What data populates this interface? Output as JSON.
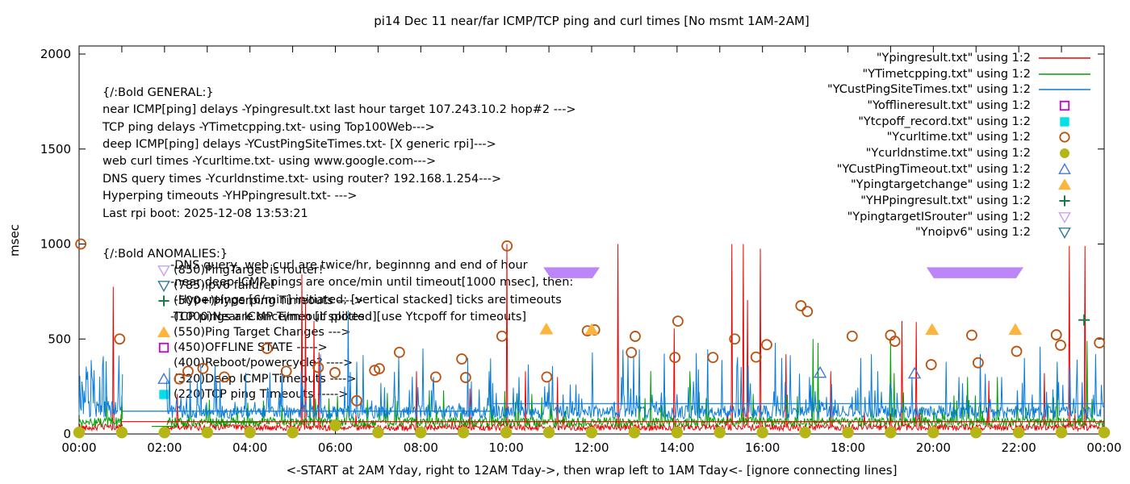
{
  "title": "pi14 Dec 11  near/far ICMP/TCP ping and curl times [No msmt 1AM-2AM]",
  "y_axis": {
    "label": "msec",
    "ticks": [
      0,
      500,
      1000,
      1500,
      2000
    ]
  },
  "x_axis": {
    "label": "<-START at 2AM Yday, right to 12AM Tday->, then wrap left to 1AM Tday<- [ignore connecting lines]",
    "tick_labels": [
      "00:00",
      "02:00",
      "04:00",
      "06:00",
      "08:00",
      "10:00",
      "12:00",
      "14:00",
      "16:00",
      "18:00",
      "20:00",
      "22:00",
      "00:00"
    ]
  },
  "annotations": {
    "general": [
      "{/:Bold GENERAL:}",
      "near ICMP[ping] delays -Ypingresult.txt last hour target 107.243.10.2 hop#2 --->",
      "TCP ping delays -YTimetcpping.txt- using Top100Web--->",
      "deep ICMP[ping] delays -YCustPingSiteTimes.txt- [X generic rpi]--->",
      "web curl times -Ycurltime.txt- using www.google.com--->",
      "DNS query times -Ycurldnstime.txt- using router? 192.168.1.254--->",
      "Hyperping timeouts -YHPpingresult.txt- --->",
      "Last rpi boot: 2025-12-08 13:53:21"
    ],
    "notes": [
      "-DNS query, web curl are twice/hr, beginnng and end of hour",
      "-near,deep ICMP pings are once/min until timeout[1000 msec], then:",
      " -Hyperpings [6/min] initiated; [vertical stacked] ticks are timeouts",
      "-TCP pings are once/min [if plotted][use Ytcpoff for timeouts]"
    ],
    "anomalies_header": "{/:Bold ANOMALIES:}",
    "anomalies": [
      {
        "marker": "triangle-down-open",
        "color": "#c9a0fa",
        "text": "(850)PingTarget is router!"
      },
      {
        "marker": "triangle-down-open",
        "color": "#337a99",
        "text": "(785)ipv6 failure!"
      },
      {
        "marker": "plus",
        "color": "#1a7a46",
        "text": "(500+)Hyperping Timeouts ---->"
      },
      {
        "marker": "none",
        "color": "",
        "text": "(1000)Near ICMP Timeout spikes"
      },
      {
        "marker": "triangle-up-filled",
        "color": "#fdb43c",
        "text": "(550)Ping Target Changes --->"
      },
      {
        "marker": "square-open",
        "color": "#c800d8",
        "text": "(450)OFFLINE STATE ----->"
      },
      {
        "marker": "none",
        "color": "",
        "text": "(400)Reboot/powercycle? ---->"
      },
      {
        "marker": "triangle-up-open",
        "color": "#4878d8",
        "text": "(320)Deep ICMP Timeouts ---->"
      },
      {
        "marker": "square-filled",
        "color": "#00e0e8",
        "text": "(220)TCP ping Timeouts ----->"
      }
    ]
  },
  "legend": [
    {
      "label": "\"Ypingresult.txt\" using 1:2",
      "marker": "line",
      "color": "#ee0000"
    },
    {
      "label": "\"YTimetcpping.txt\" using 1:2",
      "marker": "line",
      "color": "#00a000"
    },
    {
      "label": "\"YCustPingSiteTimes.txt\" using 1:2",
      "marker": "line",
      "color": "#0a7cdc"
    },
    {
      "label": "\"Yofflineresult.txt\" using 1:2",
      "marker": "square-open",
      "color": "#c800d8"
    },
    {
      "label": "\"Ytcpoff_record.txt\" using 1:2",
      "marker": "square-filled",
      "color": "#00e0e8"
    },
    {
      "label": "\"Ycurltime.txt\" using 1:2",
      "marker": "circle-open",
      "color": "#bc5210"
    },
    {
      "label": "\"Ycurldnstime.txt\" using 1:2",
      "marker": "circle-filled",
      "color": "#b5b616"
    },
    {
      "label": "\"YCustPingTimeout.txt\" using 1:2",
      "marker": "triangle-up-open",
      "color": "#4878d8"
    },
    {
      "label": "\"Ypingtargetchange\" using 1:2",
      "marker": "triangle-up-filled",
      "color": "#fdb43c"
    },
    {
      "label": "\"YHPpingresult.txt\" using 1:2",
      "marker": "plus",
      "color": "#1a7a46"
    },
    {
      "label": "\"YpingtargetISrouter\" using 1:2",
      "marker": "triangle-down-open",
      "color": "#c9a0fa"
    },
    {
      "label": "\"Ynoipv6\" using 1:2",
      "marker": "triangle-down-open",
      "color": "#337a99"
    }
  ],
  "chart_data": {
    "type": "line",
    "x_unit": "hours",
    "x_range": [
      0,
      24
    ],
    "y_range": [
      0,
      2045
    ],
    "y_ticks": [
      0,
      500,
      1000,
      1500,
      2000
    ],
    "no_measurement_window": [
      1.03,
      2.05
    ],
    "series": [
      {
        "name": "Ypingresult.txt",
        "color": "#ee0000",
        "baseline": 18,
        "noise": 34,
        "burst_chance": 0.02,
        "burst_base": 60,
        "burst_amp": 60,
        "spikes": [
          [
            0.8,
            775
          ],
          [
            2.3,
            210
          ],
          [
            5.22,
            840
          ],
          [
            5.3,
            700
          ],
          [
            5.5,
            595
          ],
          [
            5.62,
            430
          ],
          [
            7.9,
            330
          ],
          [
            9.15,
            240
          ],
          [
            10.02,
            1000
          ],
          [
            10.45,
            330
          ],
          [
            11.2,
            300
          ],
          [
            12.62,
            1000
          ],
          [
            13.93,
            555
          ],
          [
            15.28,
            1000
          ],
          [
            15.55,
            1000
          ],
          [
            15.65,
            705
          ],
          [
            15.95,
            975
          ],
          [
            16.55,
            420
          ],
          [
            17.6,
            330
          ],
          [
            19.26,
            595
          ],
          [
            19.6,
            590
          ],
          [
            21.3,
            280
          ],
          [
            22.6,
            320
          ],
          [
            23.19,
            990
          ],
          [
            23.55,
            990
          ]
        ]
      },
      {
        "name": "YTimetcpping.txt",
        "color": "#00a000",
        "baseline": 38,
        "noise": 50,
        "burst_chance": 0.05,
        "burst_base": 110,
        "burst_amp": 120,
        "spikes": [
          [
            3.05,
            180
          ],
          [
            6.05,
            200
          ],
          [
            8.2,
            230
          ],
          [
            10.6,
            210
          ],
          [
            13.38,
            331
          ],
          [
            14.3,
            330
          ],
          [
            17.18,
            500
          ],
          [
            17.3,
            480
          ],
          [
            19.0,
            495
          ],
          [
            19.08,
            320
          ],
          [
            20.8,
            300
          ],
          [
            21.5,
            300
          ],
          [
            22.9,
            300
          ],
          [
            23.6,
            490
          ]
        ]
      },
      {
        "name": "YCustPingSiteTimes.txt",
        "color": "#0a7cdc",
        "baseline": 80,
        "noise": 70,
        "burst_chance": 0.1,
        "burst_base": 150,
        "burst_amp": 130,
        "big_chance": 0.018,
        "big_base": 290,
        "big_amp": 160,
        "cluster_hours": [
          0,
          1.03
        ],
        "cluster_base": 85,
        "cluster_amp": 90,
        "cluster_spike_chance": 0.3,
        "cluster_spike_base": 200,
        "cluster_spike_amp": 240,
        "spikes": [
          [
            2.6,
            300
          ],
          [
            3.3,
            280
          ],
          [
            4.75,
            340
          ],
          [
            5.2,
            330
          ],
          [
            6.3,
            650
          ],
          [
            6.5,
            380
          ],
          [
            6.65,
            415
          ],
          [
            8.05,
            450
          ],
          [
            8.3,
            300
          ],
          [
            9.6,
            330
          ],
          [
            10.3,
            300
          ],
          [
            11.5,
            260
          ],
          [
            12.7,
            300
          ],
          [
            13.11,
            445
          ],
          [
            14.5,
            340
          ],
          [
            14.71,
            446
          ],
          [
            15.05,
            390
          ],
          [
            16.3,
            480
          ],
          [
            16.45,
            400
          ],
          [
            17.1,
            300
          ],
          [
            18.3,
            400
          ],
          [
            18.55,
            420
          ],
          [
            18.7,
            330
          ],
          [
            19.5,
            300
          ],
          [
            20.3,
            380
          ],
          [
            20.6,
            300
          ],
          [
            21.1,
            420
          ],
          [
            21.6,
            300
          ],
          [
            22.5,
            460
          ],
          [
            22.9,
            380
          ],
          [
            23.2,
            350
          ],
          [
            23.8,
            420
          ]
        ]
      }
    ],
    "flat_lines": [
      {
        "series": "Ypingresult.txt",
        "color": "#ee0000",
        "from": 1.0,
        "to": 24,
        "value": 65
      },
      {
        "series": "YCustPingSiteTimes.txt",
        "color": "#0a7cdc",
        "from": 1.0,
        "to": 9.7,
        "value": 120
      },
      {
        "series": "YCustPingSiteTimes.txt",
        "color": "#0a7cdc",
        "from": 9.7,
        "to": 24,
        "value": 160
      },
      {
        "series": "YTimetcpping.txt",
        "color": "#00a000",
        "from": 1.7,
        "to": 2.3,
        "value": 40
      },
      {
        "series": "YTimetcpping.txt",
        "color": "#00a000",
        "from": 3.0,
        "to": 4.2,
        "value": 62
      }
    ],
    "scatter": [
      {
        "name": "Ycurltime.txt",
        "marker": "circle-open",
        "color": "#bc5210",
        "points": [
          [
            0.04,
            1000
          ],
          [
            0.95,
            500
          ],
          [
            2.35,
            290
          ],
          [
            2.55,
            330
          ],
          [
            2.9,
            345
          ],
          [
            3.4,
            300
          ],
          [
            4.4,
            450
          ],
          [
            4.85,
            330
          ],
          [
            5.6,
            350
          ],
          [
            5.99,
            323
          ],
          [
            6.5,
            175
          ],
          [
            6.92,
            335
          ],
          [
            7.03,
            344
          ],
          [
            7.5,
            430
          ],
          [
            8.35,
            300
          ],
          [
            8.96,
            395
          ],
          [
            9.05,
            297
          ],
          [
            9.9,
            515
          ],
          [
            10.02,
            990
          ],
          [
            10.95,
            300
          ],
          [
            11.9,
            543
          ],
          [
            12.07,
            548
          ],
          [
            12.93,
            429
          ],
          [
            13.02,
            514
          ],
          [
            13.95,
            403
          ],
          [
            14.02,
            594
          ],
          [
            14.84,
            403
          ],
          [
            15.35,
            500
          ],
          [
            15.85,
            405
          ],
          [
            16.1,
            470
          ],
          [
            16.9,
            675
          ],
          [
            17.05,
            645
          ],
          [
            18.1,
            515
          ],
          [
            19.0,
            520
          ],
          [
            19.1,
            488
          ],
          [
            19.95,
            365
          ],
          [
            20.9,
            520
          ],
          [
            21.05,
            375
          ],
          [
            21.95,
            435
          ],
          [
            22.88,
            522
          ],
          [
            22.98,
            467
          ],
          [
            23.89,
            480
          ]
        ]
      },
      {
        "name": "Ycurldnstime.txt",
        "marker": "circle-filled",
        "color": "#b5b616",
        "points": [
          [
            0,
            8
          ],
          [
            1,
            8
          ],
          [
            2,
            8
          ],
          [
            3,
            8
          ],
          [
            4,
            8
          ],
          [
            5,
            8
          ],
          [
            6,
            45
          ],
          [
            7,
            8
          ],
          [
            8,
            8
          ],
          [
            9,
            8
          ],
          [
            10,
            8
          ],
          [
            11,
            8
          ],
          [
            12,
            8
          ],
          [
            13,
            8
          ],
          [
            14,
            8
          ],
          [
            15,
            8
          ],
          [
            16,
            8
          ],
          [
            17,
            8
          ],
          [
            18,
            8
          ],
          [
            19,
            8
          ],
          [
            20,
            8
          ],
          [
            21,
            8
          ],
          [
            22,
            8
          ],
          [
            23,
            8
          ],
          [
            24,
            8
          ]
        ]
      },
      {
        "name": "YCustPingTimeout.txt",
        "marker": "triangle-up-open",
        "color": "#4878d8",
        "points": [
          [
            17.35,
            322
          ],
          [
            19.56,
            318
          ]
        ]
      },
      {
        "name": "Ypingtargetchange",
        "marker": "triangle-up-filled",
        "color": "#fdb43c",
        "points": [
          [
            10.94,
            552
          ],
          [
            12.0,
            550
          ],
          [
            19.97,
            550
          ],
          [
            21.92,
            550
          ]
        ]
      },
      {
        "name": "YHPpingresult.txt",
        "marker": "plus",
        "color": "#1a7a46",
        "points": [
          [
            23.53,
            600
          ]
        ]
      }
    ],
    "bands": [
      {
        "name": "YpingtargetISrouter",
        "color": "#bd86f8",
        "value": 850,
        "from": 10.87,
        "to": 12.19
      },
      {
        "name": "YpingtargetISrouter",
        "color": "#bd86f8",
        "value": 850,
        "from": 19.84,
        "to": 22.11
      }
    ]
  }
}
